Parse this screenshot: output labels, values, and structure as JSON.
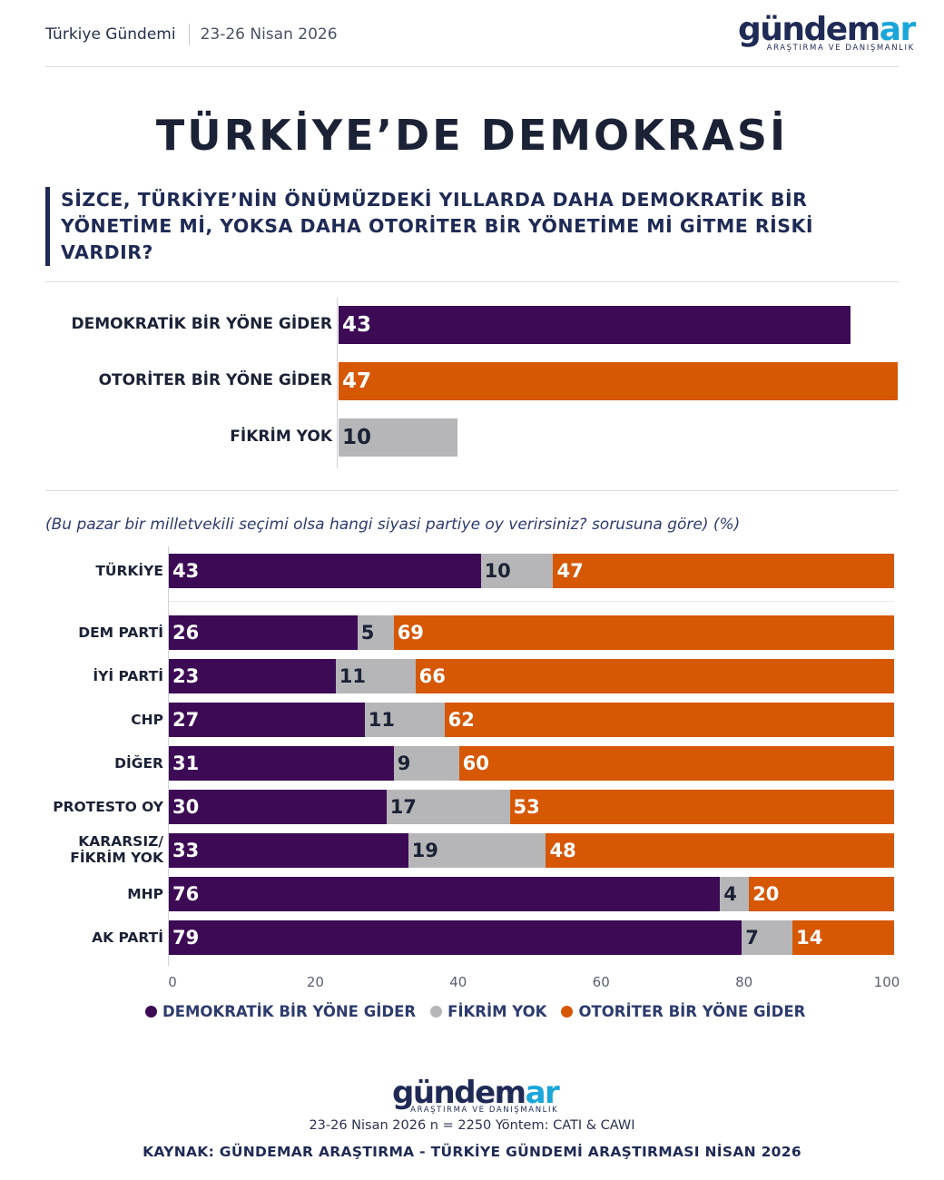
{
  "header": {
    "section": "Türkiye Gündemi",
    "date": "23-26 Nisan 2026"
  },
  "logo": {
    "word_main": "gündem",
    "word_accent": "ar",
    "tagline": "ARAŞTIRMA VE DANIŞMANLIK"
  },
  "title": "TÜRKİYE’DE DEMOKRASİ",
  "question": "SİZCE, TÜRKİYE’NİN ÖNÜMÜZDEKİ YILLARDA DAHA DEMOKRATİK BİR YÖNETİME Mİ, YOKSA DAHA OTORİTER BİR YÖNETİME Mİ GİTME RİSKİ VARDIR?",
  "subnote": "(Bu pazar bir milletvekili seçimi olsa hangi siyasi partiye oy verirsiniz? sorusuna göre) (%)",
  "colors": {
    "democratic": "#3d0b55",
    "none": "#b6b6b8",
    "authoritarian": "#d65704"
  },
  "legend": [
    "DEMOKRATİK BİR YÖNE GİDER",
    "FİKRİM YOK",
    "OTORİTER BİR YÖNE GİDER"
  ],
  "footer": {
    "meta": "23-26 Nisan 2026 n = 2250 Yöntem: CATI & CAWI",
    "source": "KAYNAK: GÜNDEMAR ARAŞTIRMA - TÜRKİYE GÜNDEMİ ARAŞTIRMASI NİSAN 2026"
  },
  "chart_data": [
    {
      "type": "bar",
      "orientation": "horizontal",
      "categories": [
        "DEMOKRATİK BİR YÖNE GİDER",
        "OTORİTER BİR YÖNE GİDER",
        "FİKRİM YOK"
      ],
      "values": [
        43,
        47,
        10
      ],
      "colors": [
        "#3d0b55",
        "#d65704",
        "#b6b6b8"
      ],
      "xlim": [
        0,
        47
      ]
    },
    {
      "type": "bar",
      "orientation": "horizontal",
      "stacked": true,
      "categories": [
        "TÜRKİYE",
        "DEM PARTİ",
        "İYİ PARTİ",
        "CHP",
        "DİĞER",
        "PROTESTO OY",
        "KARARSIZ/ FİKRİM YOK",
        "MHP",
        "AK PARTİ"
      ],
      "series": [
        {
          "name": "DEMOKRATİK BİR YÖNE GİDER",
          "values": [
            43,
            26,
            23,
            27,
            31,
            30,
            33,
            76,
            79
          ]
        },
        {
          "name": "FİKRİM YOK",
          "values": [
            10,
            5,
            11,
            11,
            9,
            17,
            19,
            4,
            7
          ]
        },
        {
          "name": "OTORİTER BİR YÖNE GİDER",
          "values": [
            47,
            69,
            66,
            62,
            60,
            53,
            48,
            20,
            14
          ]
        }
      ],
      "xticks": [
        "0",
        "20",
        "40",
        "60",
        "80",
        "100"
      ],
      "xlim": [
        0,
        100
      ],
      "legend_position": "bottom"
    }
  ]
}
